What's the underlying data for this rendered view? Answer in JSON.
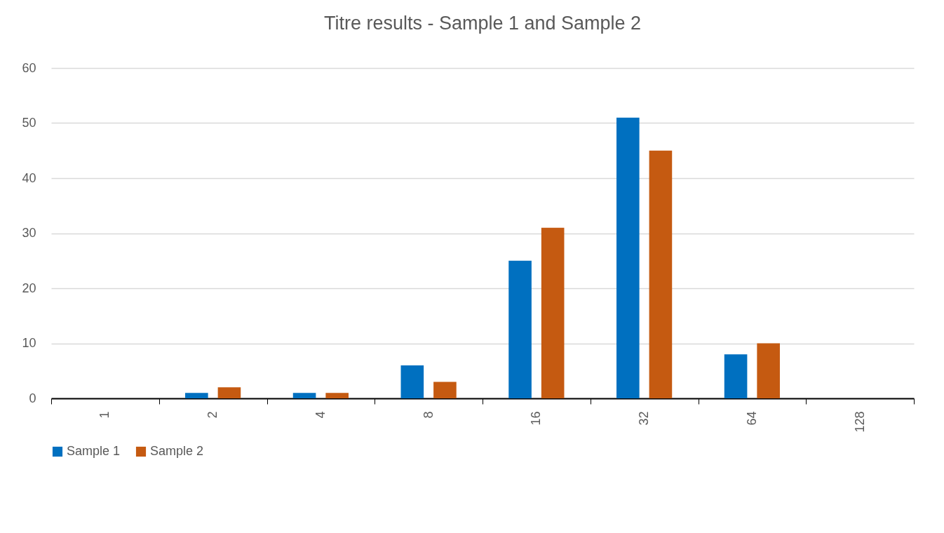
{
  "chart_data": {
    "type": "bar",
    "title": "Titre results - Sample 1 and Sample 2",
    "categories": [
      "1",
      "2",
      "4",
      "8",
      "16",
      "32",
      "64",
      "128"
    ],
    "series": [
      {
        "name": "Sample 1",
        "color": "#0070c0",
        "values": [
          0,
          1,
          1,
          6,
          25,
          51,
          8,
          0
        ]
      },
      {
        "name": "Sample 2",
        "color": "#c55a11",
        "values": [
          0,
          2,
          1,
          3,
          31,
          45,
          10,
          0
        ]
      }
    ],
    "ylim": [
      0,
      60
    ],
    "yticks": [
      0,
      10,
      20,
      30,
      40,
      50,
      60
    ],
    "grid": "y",
    "legend": "bottom"
  }
}
